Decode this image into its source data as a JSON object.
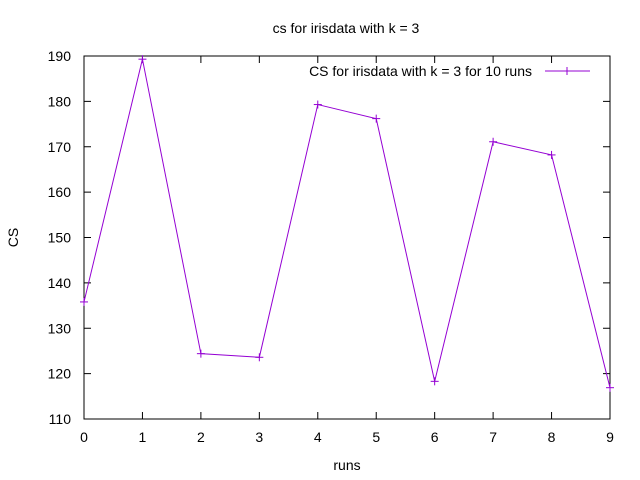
{
  "chart_data": {
    "type": "line",
    "title": "cs for irisdata with k = 3",
    "xlabel": "runs",
    "ylabel": "CS",
    "xlim": [
      0,
      9
    ],
    "ylim": [
      110,
      190
    ],
    "xticks": [
      0,
      1,
      2,
      3,
      4,
      5,
      6,
      7,
      8,
      9
    ],
    "yticks": [
      110,
      120,
      130,
      140,
      150,
      160,
      170,
      180,
      190
    ],
    "grid": false,
    "legend_position": "top-right",
    "series": [
      {
        "name": "CS for irisdata with k = 3 for 10 runs",
        "color": "#9400d3",
        "marker": "plus",
        "x": [
          0,
          1,
          2,
          3,
          4,
          5,
          6,
          7,
          8,
          9
        ],
        "y": [
          135.8,
          189.3,
          124.4,
          123.6,
          179.3,
          176.2,
          118.3,
          171.1,
          168.2,
          116.9
        ]
      }
    ]
  }
}
